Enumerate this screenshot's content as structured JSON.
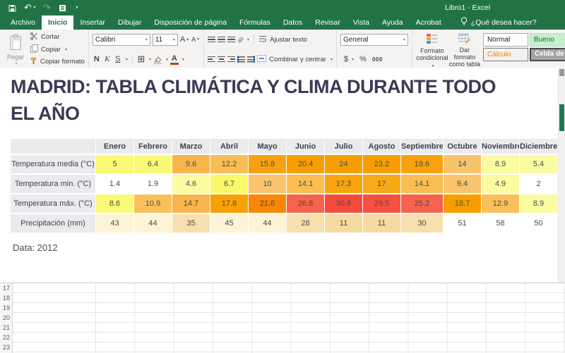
{
  "titlebar": {
    "title": "Libro1 - Excel"
  },
  "tabs": [
    {
      "id": "archivo",
      "label": "Archivo",
      "active": false
    },
    {
      "id": "inicio",
      "label": "Inicio",
      "active": true
    },
    {
      "id": "insertar",
      "label": "Insertar",
      "active": false
    },
    {
      "id": "dibujar",
      "label": "Dibujar",
      "active": false
    },
    {
      "id": "disposicion-de-pagina",
      "label": "Disposición de página",
      "active": false
    },
    {
      "id": "formulas",
      "label": "Fórmulas",
      "active": false
    },
    {
      "id": "datos",
      "label": "Datos",
      "active": false
    },
    {
      "id": "revisar",
      "label": "Revisar",
      "active": false
    },
    {
      "id": "vista",
      "label": "Vista",
      "active": false
    },
    {
      "id": "ayuda",
      "label": "Ayuda",
      "active": false
    },
    {
      "id": "acrobat",
      "label": "Acrobat",
      "active": false
    }
  ],
  "tellme": {
    "label": "¿Qué desea hacer?"
  },
  "ribbon": {
    "paste_label": "Pegar",
    "cut_label": "Cortar",
    "copy_label": "Copiar",
    "format_painter_label": "Copiar formato",
    "font_name": "Calibri",
    "font_size": "11",
    "bold": "N",
    "italic": "K",
    "underline": "S",
    "orientation": "ab",
    "wrap_label": "Ajustar texto",
    "merge_label": "Combinar y centrar",
    "number_format": "General",
    "currency": "$",
    "percent": "%",
    "thousands": "000",
    "cond_format_line1": "Formato",
    "cond_format_line2": "condicional",
    "format_table_line1": "Dar formato",
    "format_table_line2": "como tabla",
    "style_normal": "Normal",
    "style_bueno": "Bueno",
    "style_calculo": "Cálculo",
    "style_celda": "Celda de co"
  },
  "content": {
    "heading_line1": "MADRID: TABLA CLIMÁTICA Y CLIMA DURANTE TODO",
    "heading_line2": "EL AÑO",
    "source": "Data:  2012"
  },
  "chart_data": {
    "type": "table",
    "title": "Madrid tabla climática",
    "categories": [
      "Enero",
      "Febrero",
      "Marzo",
      "Abril",
      "Mayo",
      "Junio",
      "Julio",
      "Agosto",
      "Septiembre",
      "Octubre",
      "Noviembre",
      "Diciembre"
    ],
    "rows": [
      {
        "label": "Temperatura media (°C)",
        "values": [
          5,
          6.4,
          9.6,
          12.2,
          15.8,
          20.4,
          24,
          23.2,
          19.6,
          14,
          8.9,
          5.4
        ],
        "colors": [
          "#fafa76",
          "#fafa76",
          "#f8b54b",
          "#f9bd55",
          "#f8a110",
          "#f89d00",
          "#f89d00",
          "#f89d00",
          "#f8a110",
          "#f9c469",
          "#fbfba2",
          "#fbfba2"
        ]
      },
      {
        "label": "Temperatura min. (°C)",
        "values": [
          1.4,
          1.9,
          4.6,
          6.7,
          10,
          14.1,
          17.3,
          17,
          14.1,
          9.4,
          4.9,
          2
        ],
        "colors": [
          "#ffffff",
          "#ffffff",
          "#fbfba2",
          "#f9f96b",
          "#f9c46d",
          "#f9bd50",
          "#f8a410",
          "#f8a917",
          "#f9bd50",
          "#f9c46d",
          "#fbfba2",
          "#ffffff"
        ]
      },
      {
        "label": "Temperatura máx. (°C)",
        "values": [
          8.6,
          10.9,
          14.7,
          17.8,
          21.6,
          26.8,
          30.8,
          29.5,
          25.2,
          18.7,
          12.9,
          8.9
        ],
        "colors": [
          "#fafa76",
          "#f9c05b",
          "#f8b54b",
          "#f8a006",
          "#f88607",
          "#f7624d",
          "#f64a3c",
          "#f65041",
          "#f7624d",
          "#f89d00",
          "#f9c05b",
          "#fbfba2"
        ]
      },
      {
        "label": "Precipitación (mm)",
        "values": [
          43,
          44,
          35,
          45,
          44,
          28,
          11,
          11,
          30,
          51,
          58,
          50
        ],
        "colors": [
          "#fdf4d7",
          "#fdf4d7",
          "#f8dfae",
          "#fdf4d7",
          "#fdf4d7",
          "#f8dfae",
          "#f7d9a2",
          "#f7d9a2",
          "#f8dfae",
          "#ffffff",
          "#ffffff",
          "#ffffff"
        ]
      }
    ]
  },
  "grid": {
    "row_numbers": [
      "17",
      "18",
      "19",
      "20",
      "21",
      "22",
      "23"
    ]
  }
}
